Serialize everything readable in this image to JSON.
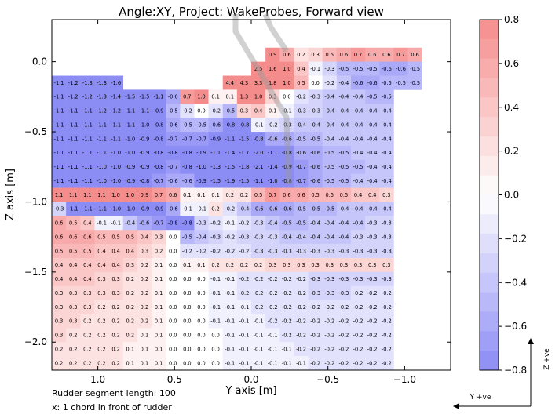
{
  "chart_data": {
    "type": "heatmap",
    "title": "Angle:XY, Project: WakeProbes, Forward view",
    "xlabel": "Y axis [m]",
    "ylabel": "Z axis [m]",
    "x_ticks": [
      "1.0",
      "0.5",
      "0.0",
      "−0.5",
      "−1.0"
    ],
    "y_ticks": [
      "0.0",
      "−0.5",
      "−1.0",
      "−1.5",
      "−2.0"
    ],
    "colorbar_ticks": [
      "0.8",
      "0.6",
      "0.4",
      "0.2",
      "0.0",
      "−0.2",
      "−0.4",
      "−0.6",
      "−0.8"
    ],
    "colorbar_range": [
      -0.8,
      0.8
    ],
    "colormap": {
      "negative": "#8c8cf5",
      "zero": "#ffffff",
      "positive": "#f58c8c"
    },
    "xlim": [
      1.3,
      -1.3
    ],
    "ylim": [
      -2.2,
      0.3
    ],
    "cell_width": 0.1,
    "cell_height": 0.1,
    "columns": 28,
    "rows": [
      {
        "z": 0.05,
        "start": 15,
        "v": [
          0.9,
          0.6,
          0.2,
          0.3,
          0.5,
          0.6,
          0.7,
          0.6,
          0.6,
          0.7,
          0.6
        ]
      },
      {
        "z": -0.05,
        "start": 14,
        "v": [
          2.5,
          1.6,
          1.0,
          0.4,
          -0.1,
          -0.3,
          -0.5,
          -0.5,
          -0.5,
          -0.6,
          -0.6,
          -0.5
        ]
      },
      {
        "z": -0.15,
        "start": 0,
        "v": [
          -1.1,
          -1.2,
          -1.3,
          -1.3,
          -1.6,
          null,
          null,
          null,
          null,
          null,
          null,
          null,
          4.4,
          4.3,
          3.3,
          1.8,
          1.0,
          0.5,
          0.0,
          -0.2,
          -0.4,
          -0.6,
          -0.6,
          -0.5,
          -0.5,
          -0.5
        ]
      },
      {
        "z": -0.25,
        "start": 0,
        "v": [
          -1.1,
          -1.2,
          -1.2,
          -1.3,
          -1.4,
          -1.5,
          -1.5,
          -1.1,
          -0.6,
          0.7,
          1.0,
          0.1,
          0.1,
          1.3,
          1.0,
          0.3,
          -0.0,
          -0.2,
          -0.3,
          -0.4,
          -0.4,
          -0.4,
          -0.5,
          -0.5
        ]
      },
      {
        "z": -0.35,
        "start": 0,
        "v": [
          -1.1,
          -1.1,
          -1.1,
          -1.2,
          -1.2,
          -1.1,
          -1.1,
          -0.9,
          -0.5,
          -0.2,
          -0.0,
          -0.2,
          -0.5,
          0.3,
          0.4,
          0.1,
          -0.1,
          -0.3,
          -0.3,
          -0.4,
          -0.4,
          -0.4,
          -0.4,
          -0.4
        ]
      },
      {
        "z": -0.45,
        "start": 0,
        "v": [
          -1.1,
          -1.1,
          -1.1,
          -1.1,
          -1.1,
          -1.1,
          -1.0,
          -0.8,
          -0.6,
          -0.5,
          -0.5,
          -0.6,
          -0.8,
          -0.8,
          -0.1,
          -0.2,
          -0.3,
          -0.4,
          -0.4,
          -0.4,
          -0.4,
          -0.4,
          -0.4,
          -0.4
        ]
      },
      {
        "z": -0.55,
        "start": 0,
        "v": [
          -1.1,
          -1.1,
          -1.1,
          -1.1,
          -1.1,
          -1.0,
          -0.9,
          -0.8,
          -0.7,
          -0.7,
          -0.7,
          -0.9,
          -1.1,
          -1.5,
          -0.8,
          -0.6,
          -0.6,
          -0.5,
          -0.5,
          -0.4,
          -0.4,
          -0.4,
          -0.4,
          -0.4
        ]
      },
      {
        "z": -0.65,
        "start": 0,
        "v": [
          -1.1,
          -1.1,
          -1.1,
          -1.1,
          -1.0,
          -1.0,
          -0.9,
          -0.8,
          -0.8,
          -0.8,
          -0.9,
          -1.1,
          -1.4,
          -1.7,
          -2.0,
          -1.1,
          -0.8,
          -0.6,
          -0.6,
          -0.5,
          -0.5,
          -0.4,
          -0.4,
          -0.4
        ]
      },
      {
        "z": -0.75,
        "start": 0,
        "v": [
          -1.1,
          -1.1,
          -1.1,
          -1.0,
          -1.0,
          -0.9,
          -0.9,
          -0.8,
          -0.7,
          -0.8,
          -1.0,
          -1.3,
          -1.5,
          -1.8,
          -2.1,
          -1.4,
          -0.9,
          -0.7,
          -0.6,
          -0.5,
          -0.5,
          -0.5,
          -0.4,
          -0.4
        ]
      },
      {
        "z": -0.85,
        "start": 0,
        "v": [
          -1.1,
          -1.1,
          -1.1,
          -1.0,
          -1.0,
          -0.9,
          -0.8,
          -0.7,
          -0.6,
          -0.6,
          -0.9,
          -1.5,
          -1.9,
          -1.5,
          -1.1,
          -1.0,
          -0.8,
          -0.7,
          -0.6,
          -0.5,
          -0.5,
          -0.4,
          -0.4,
          -0.4
        ]
      },
      {
        "z": -0.95,
        "start": 0,
        "v": [
          1.1,
          1.1,
          1.1,
          1.1,
          1.0,
          1.0,
          0.9,
          0.7,
          0.6,
          0.1,
          0.1,
          0.1,
          0.2,
          0.2,
          0.5,
          0.7,
          0.6,
          0.6,
          0.5,
          0.5,
          0.5,
          0.4,
          0.4,
          0.3
        ]
      },
      {
        "z": -1.05,
        "start": 0,
        "v": [
          -0.3,
          -1.1,
          -1.1,
          -1.1,
          -1.0,
          -1.0,
          -0.9,
          -0.9,
          -0.6,
          -0.1,
          -0.1,
          0.2,
          -0.2,
          -0.4,
          -0.6,
          -0.6,
          -0.6,
          -0.5,
          -0.5,
          -0.5,
          -0.4,
          -0.4,
          -0.4,
          -0.4
        ]
      },
      {
        "z": -1.15,
        "start": 0,
        "v": [
          0.6,
          0.5,
          0.4,
          -0.1,
          -0.1,
          -0.4,
          -0.6,
          -0.7,
          -0.8,
          -0.8,
          -0.3,
          -0.2,
          -0.1,
          -0.2,
          -0.3,
          -0.4,
          -0.5,
          -0.5,
          -0.4,
          -0.4,
          -0.4,
          -0.4,
          -0.3,
          -0.3
        ]
      },
      {
        "z": -1.25,
        "start": 0,
        "v": [
          0.6,
          0.6,
          0.6,
          0.5,
          0.5,
          0.5,
          0.4,
          0.3,
          0.0,
          -0.5,
          -0.4,
          -0.3,
          -0.2,
          -0.3,
          -0.3,
          -0.3,
          -0.4,
          -0.4,
          -0.4,
          -0.4,
          -0.4,
          -0.3,
          -0.3,
          -0.3
        ]
      },
      {
        "z": -1.35,
        "start": 0,
        "v": [
          0.5,
          0.5,
          0.5,
          0.4,
          0.4,
          0.4,
          0.3,
          0.2,
          0.0,
          -0.2,
          -0.2,
          -0.2,
          -0.2,
          -0.2,
          -0.3,
          -0.3,
          -0.3,
          -0.3,
          -0.3,
          -0.3,
          -0.3,
          -0.3,
          -0.3,
          -0.3
        ]
      },
      {
        "z": -1.45,
        "start": 0,
        "v": [
          0.4,
          0.4,
          0.4,
          0.4,
          0.4,
          0.3,
          0.2,
          0.1,
          0.0,
          0.1,
          0.1,
          0.2,
          0.2,
          0.2,
          0.2,
          0.3,
          0.3,
          0.3,
          0.3,
          0.3,
          0.3,
          0.3,
          0.3,
          0.3
        ]
      },
      {
        "z": -1.55,
        "start": 0,
        "v": [
          0.4,
          0.4,
          0.4,
          0.3,
          0.3,
          0.2,
          0.2,
          0.1,
          0.0,
          -0.0,
          -0.0,
          -0.1,
          -0.1,
          -0.2,
          -0.2,
          -0.2,
          -0.2,
          -0.2,
          -0.3,
          -0.3,
          -0.3,
          -0.3,
          -0.3,
          -0.3
        ]
      },
      {
        "z": -1.65,
        "start": 0,
        "v": [
          0.3,
          0.3,
          0.3,
          0.3,
          0.3,
          0.2,
          0.2,
          0.1,
          0.0,
          -0.0,
          -0.0,
          -0.1,
          -0.1,
          -0.2,
          -0.2,
          -0.2,
          -0.2,
          -0.2,
          -0.3,
          -0.3,
          -0.3,
          -0.2,
          -0.2,
          -0.2
        ]
      },
      {
        "z": -1.75,
        "start": 0,
        "v": [
          0.3,
          0.3,
          0.3,
          0.2,
          0.2,
          0.2,
          0.2,
          0.1,
          0.0,
          -0.0,
          -0.0,
          -0.1,
          -0.1,
          -0.1,
          -0.2,
          -0.2,
          -0.2,
          -0.2,
          -0.2,
          -0.2,
          -0.2,
          -0.2,
          -0.2,
          -0.2
        ]
      },
      {
        "z": -1.85,
        "start": 0,
        "v": [
          0.3,
          0.3,
          0.2,
          0.2,
          0.2,
          0.2,
          0.2,
          0.1,
          0.0,
          -0.0,
          -0.0,
          -0.1,
          -0.1,
          -0.1,
          -0.1,
          -0.2,
          -0.2,
          -0.2,
          -0.2,
          -0.2,
          -0.2,
          -0.2,
          -0.2,
          -0.2
        ]
      },
      {
        "z": -1.95,
        "start": 0,
        "v": [
          0.3,
          0.2,
          0.2,
          0.2,
          0.2,
          0.2,
          0.1,
          0.1,
          0.0,
          -0.0,
          -0.0,
          -0.0,
          -0.1,
          -0.1,
          -0.1,
          -0.1,
          -0.2,
          -0.2,
          -0.2,
          -0.2,
          -0.2,
          -0.2,
          -0.2,
          -0.2
        ]
      },
      {
        "z": -2.05,
        "start": 0,
        "v": [
          0.2,
          0.2,
          0.2,
          0.2,
          0.2,
          0.1,
          0.1,
          0.1,
          0.0,
          -0.0,
          -0.0,
          -0.0,
          -0.1,
          -0.1,
          -0.1,
          -0.1,
          -0.1,
          -0.2,
          -0.2,
          -0.2,
          -0.2,
          -0.2,
          -0.2,
          -0.2
        ]
      },
      {
        "z": -2.15,
        "start": 0,
        "v": [
          0.2,
          0.2,
          0.2,
          0.2,
          0.2,
          0.1,
          0.1,
          0.1,
          0.0,
          -0.0,
          -0.0,
          -0.0,
          -0.1,
          -0.1,
          -0.1,
          -0.1,
          -0.1,
          -0.1,
          -0.2,
          -0.2,
          -0.2,
          -0.2,
          -0.2,
          -0.2
        ]
      }
    ]
  },
  "notes": {
    "segment": "Rudder segment length: 100",
    "chord": "x: 1 chord in front of rudder"
  },
  "axis_indicators": {
    "z": "Z +ve",
    "y": "Y +ve"
  }
}
